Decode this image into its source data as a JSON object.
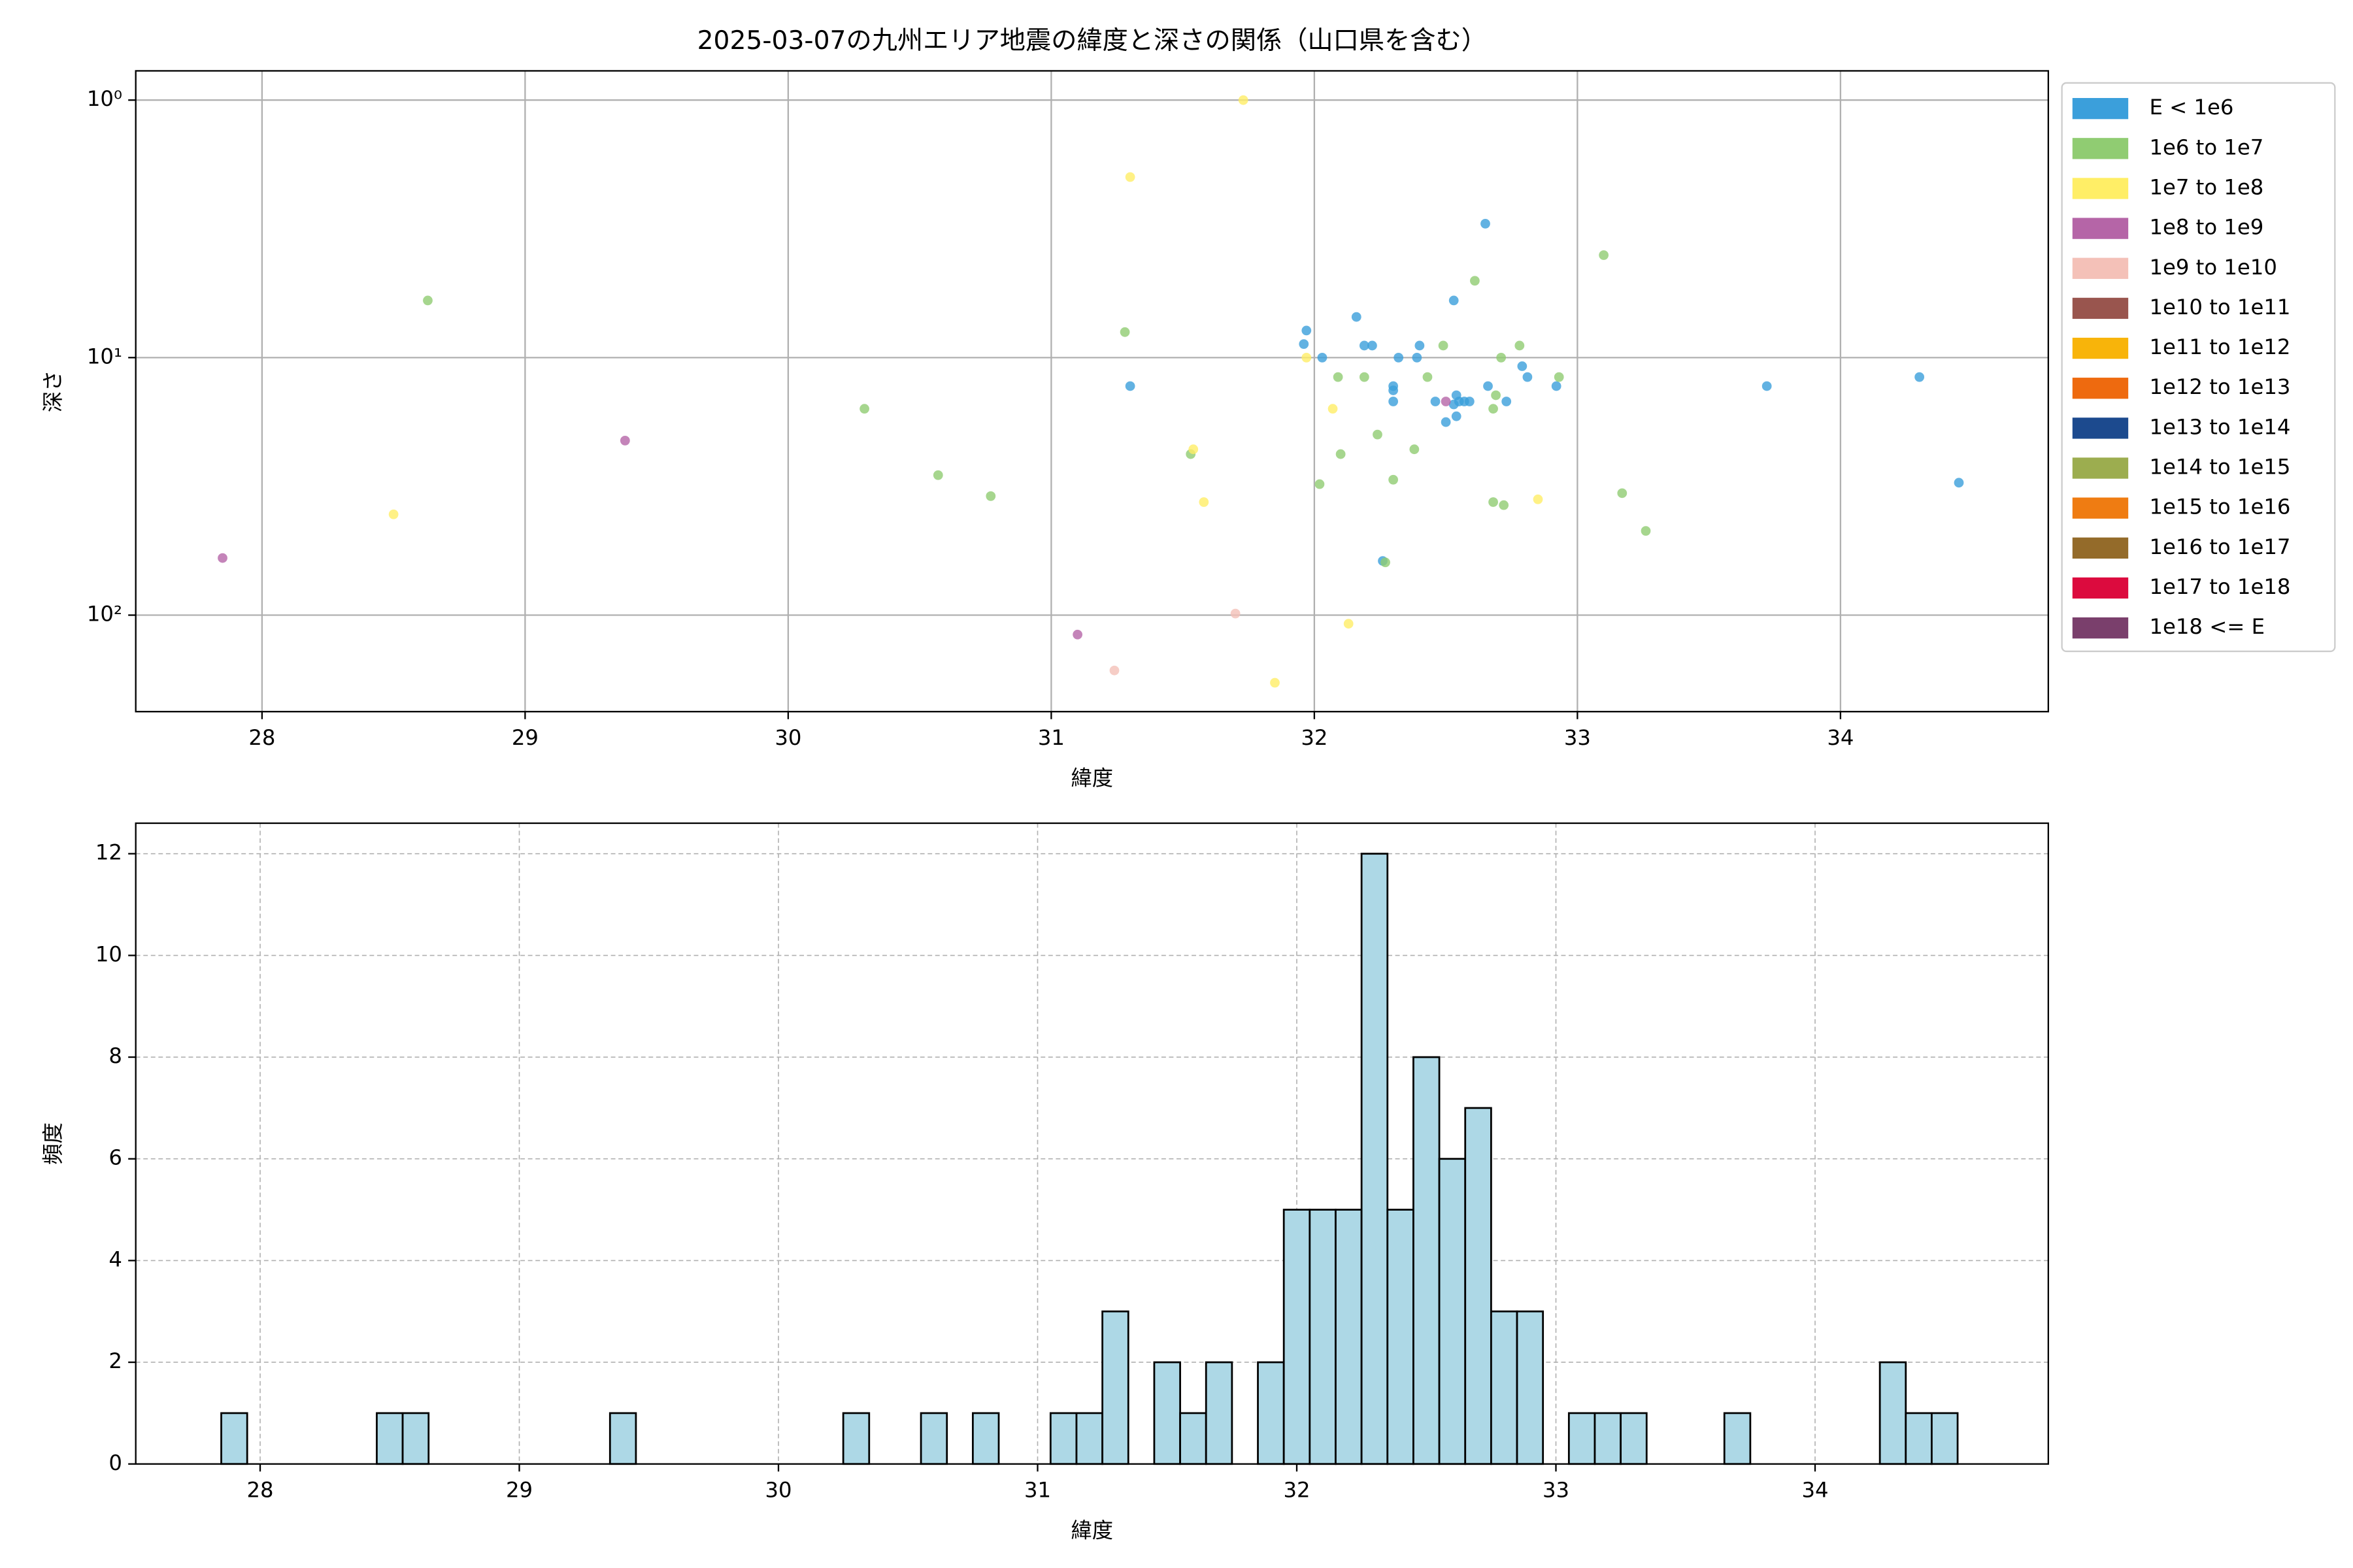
{
  "chart_data": [
    {
      "type": "scatter",
      "title": "2025-03-07の九州エリア地震の緯度と深さの関係（山口県を含む）",
      "xlabel": "緯度",
      "ylabel": "深さ",
      "xlim": [
        27.52,
        34.79
      ],
      "xticks": [
        28,
        29,
        30,
        31,
        32,
        33,
        34
      ],
      "ylim": [
        0.77,
        237
      ],
      "yscale": "log",
      "y_inverted": true,
      "yticks": [
        {
          "value": 1,
          "label": "10⁰"
        },
        {
          "value": 10,
          "label": "10¹"
        },
        {
          "value": 100,
          "label": "10²"
        }
      ],
      "grid": true,
      "legend": "outside upper right",
      "series": [
        {
          "name": "E < 1e6",
          "color": "#3b9fdb",
          "x": [
            32.65,
            32.53,
            32.16,
            31.97,
            31.96,
            32.19,
            32.22,
            32.03,
            32.32,
            32.39,
            32.4,
            32.79,
            32.81,
            31.3,
            32.3,
            32.3,
            32.46,
            32.3,
            32.54,
            32.55,
            32.53,
            32.57,
            32.59,
            32.73,
            32.54,
            32.5,
            32.92,
            33.72,
            34.3,
            34.45,
            32.26,
            32.66
          ],
          "y": [
            3.02,
            6.0,
            6.95,
            7.85,
            8.86,
            8.98,
            8.98,
            10.0,
            10.0,
            10.0,
            8.98,
            10.8,
            11.9,
            12.9,
            12.9,
            13.4,
            14.8,
            14.8,
            14.0,
            14.8,
            15.2,
            14.8,
            14.8,
            14.8,
            16.9,
            17.8,
            12.9,
            12.9,
            11.9,
            30.6,
            61.6,
            12.9
          ]
        },
        {
          "name": "1e6 to 1e7",
          "color": "#90cc72",
          "x": [
            28.63,
            33.1,
            32.61,
            31.28,
            32.78,
            32.71,
            32.09,
            32.19,
            32.43,
            32.93,
            32.49,
            30.29,
            31.53,
            32.1,
            32.24,
            32.38,
            32.02,
            32.3,
            30.57,
            30.77,
            32.68,
            32.72,
            33.17,
            33.26,
            32.27,
            32.68,
            32.69
          ],
          "y": [
            6.0,
            4.0,
            5.03,
            7.96,
            8.98,
            10.0,
            11.9,
            11.9,
            11.9,
            11.9,
            8.98,
            15.8,
            23.7,
            23.7,
            19.9,
            22.7,
            31.0,
            29.8,
            28.6,
            34.5,
            36.4,
            37.4,
            33.6,
            47.1,
            62.4,
            15.8,
            14.0
          ]
        },
        {
          "name": "1e7 to 1e8",
          "color": "#ffee66",
          "x": [
            31.73,
            31.3,
            31.97,
            32.07,
            31.54,
            31.58,
            28.5,
            32.85,
            32.13,
            31.85
          ],
          "y": [
            1.0,
            1.99,
            10.0,
            15.8,
            22.7,
            36.4,
            40.6,
            35.5,
            108,
            183
          ]
        },
        {
          "name": "1e8 to 1e9",
          "color": "#b565a7",
          "x": [
            27.85,
            29.38,
            31.1,
            32.5
          ],
          "y": [
            60.0,
            21.0,
            119,
            14.8
          ]
        },
        {
          "name": "1e9 to 1e10",
          "color": "#f4c1b8",
          "x": [
            31.7,
            31.24
          ],
          "y": [
            98.6,
            164
          ]
        },
        {
          "name": "1e10 to 1e11",
          "color": "#99554e",
          "x": [],
          "y": []
        },
        {
          "name": "1e11 to 1e12",
          "color": "#f8b40a",
          "x": [],
          "y": []
        },
        {
          "name": "1e12 to 1e13",
          "color": "#ee6a0f",
          "x": [],
          "y": []
        },
        {
          "name": "1e13 to 1e14",
          "color": "#1c4a8e",
          "x": [],
          "y": []
        },
        {
          "name": "1e14 to 1e15",
          "color": "#9cad4f",
          "x": [],
          "y": []
        },
        {
          "name": "1e15 to 1e16",
          "color": "#ef7c12",
          "x": [],
          "y": []
        },
        {
          "name": "1e16 to 1e17",
          "color": "#946b2a",
          "x": [],
          "y": []
        },
        {
          "name": "1e17 to 1e18",
          "color": "#dc0b3e",
          "x": [],
          "y": []
        },
        {
          "name": "1e18 <= E",
          "color": "#7a3f6c",
          "x": [],
          "y": []
        }
      ]
    },
    {
      "type": "histogram",
      "xlabel": "緯度",
      "ylabel": "頻度",
      "xlim": [
        27.52,
        34.9
      ],
      "xticks": [
        28,
        29,
        30,
        31,
        32,
        33,
        34
      ],
      "ylim": [
        0,
        12.6
      ],
      "yticks": [
        0,
        2,
        4,
        6,
        8,
        10,
        12
      ],
      "grid": true,
      "grid_style": "dashed",
      "color": "#add8e6",
      "edgecolor": "#000000",
      "bins": [
        27.85,
        27.95,
        28.05,
        28.15,
        28.25,
        28.35,
        28.45,
        28.55,
        28.65,
        28.75,
        28.85,
        28.95,
        29.05,
        29.15,
        29.25,
        29.35,
        29.45,
        29.55,
        29.65,
        29.75,
        29.85,
        29.95,
        30.05,
        30.15,
        30.25,
        30.35,
        30.45,
        30.55,
        30.65,
        30.75,
        30.85,
        30.95,
        31.05,
        31.15,
        31.25,
        31.35,
        31.45,
        31.55,
        31.65,
        31.75,
        31.85,
        31.95,
        32.05,
        32.15,
        32.25,
        32.35,
        32.45,
        32.55,
        32.65,
        32.75,
        32.85,
        32.95,
        33.05,
        33.15,
        33.25,
        33.35,
        33.45,
        33.55,
        33.65,
        33.75,
        33.85,
        33.95,
        34.05,
        34.15,
        34.25,
        34.35,
        34.45,
        34.55
      ],
      "values": [
        1,
        0,
        0,
        0,
        0,
        0,
        1,
        1,
        0,
        0,
        0,
        0,
        0,
        0,
        0,
        1,
        0,
        0,
        0,
        0,
        0,
        0,
        0,
        0,
        1,
        0,
        0,
        1,
        0,
        1,
        0,
        0,
        1,
        1,
        3,
        0,
        2,
        1,
        2,
        0,
        2,
        5,
        5,
        5,
        12,
        5,
        8,
        6,
        7,
        3,
        3,
        0,
        1,
        1,
        1,
        0,
        0,
        0,
        1,
        0,
        0,
        0,
        0,
        0,
        2,
        1,
        1
      ]
    }
  ]
}
